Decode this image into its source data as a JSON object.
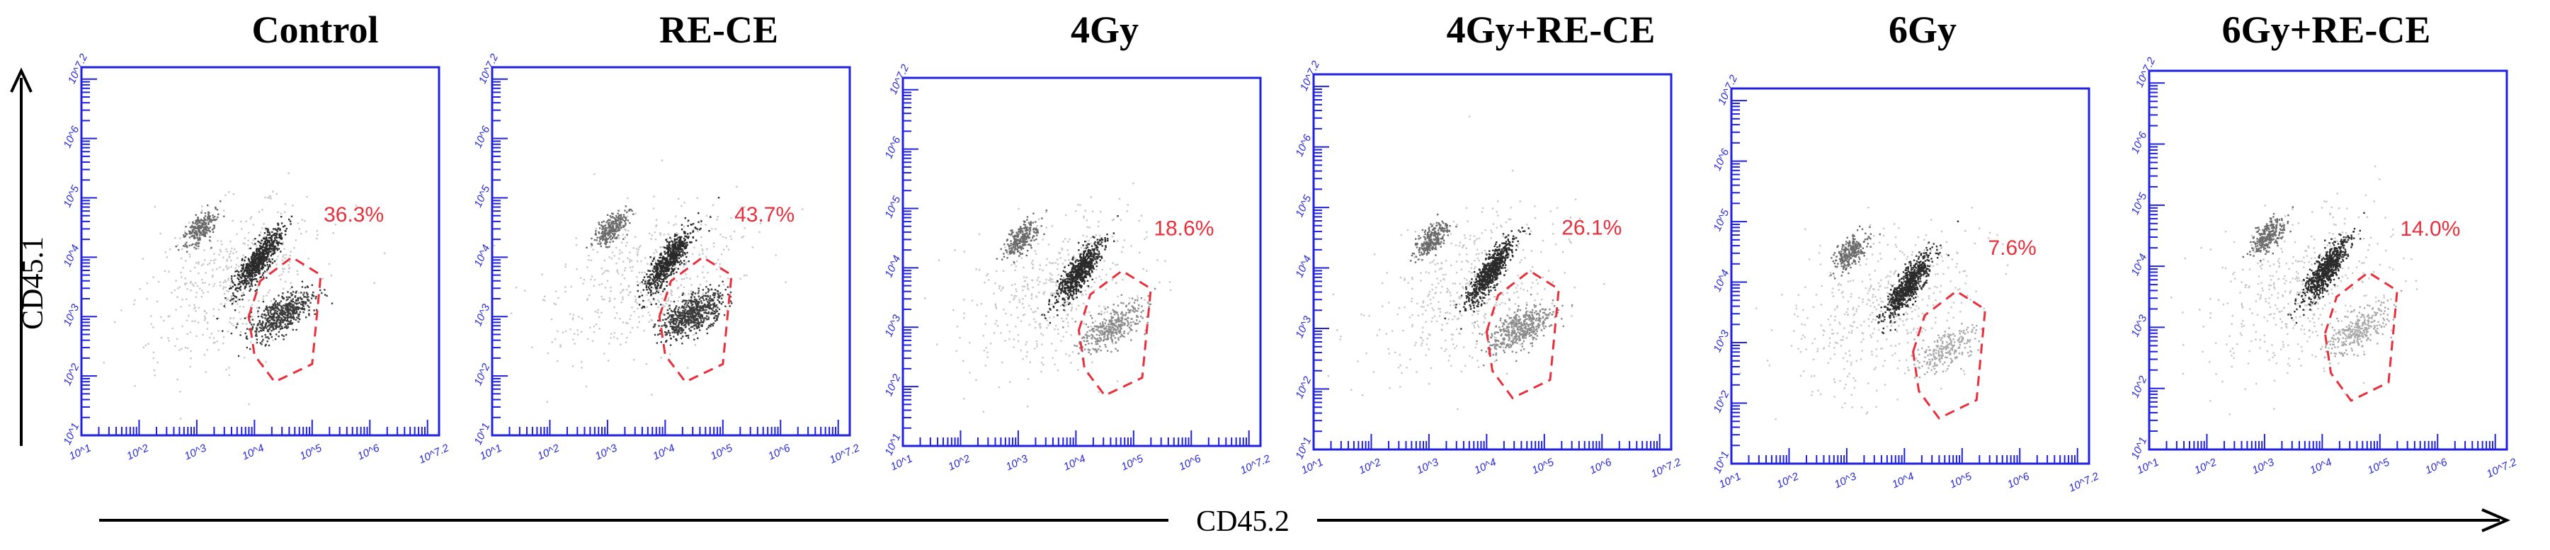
{
  "chart_data": {
    "type": "scatter",
    "xlabel": "CD45.2",
    "ylabel": "CD45.1",
    "xlim": [
      1,
      7.2
    ],
    "ylim": [
      1,
      7.2
    ],
    "x_scale": "log",
    "y_scale": "log",
    "tick_labels": [
      "10^1",
      "10^2",
      "10^3",
      "10^4",
      "10^5",
      "10^6",
      "10^7.2"
    ],
    "panels": [
      {
        "title": "Control",
        "gate_percent": "36.3%",
        "dim": 0.85,
        "donor_pop": [
          4.45,
          3.05
        ]
      },
      {
        "title": "RE-CE",
        "gate_percent": "43.7%",
        "dim": 1.0,
        "donor_pop": [
          4.45,
          3.05
        ]
      },
      {
        "title": "4Gy",
        "gate_percent": "18.6%",
        "dim": 0.55,
        "donor_pop": [
          4.6,
          3.0
        ]
      },
      {
        "title": "4Gy+RE-CE",
        "gate_percent": "26.1%",
        "dim": 0.7,
        "donor_pop": [
          4.55,
          3.0
        ]
      },
      {
        "title": "6Gy",
        "gate_percent": "7.6%",
        "dim": 0.35,
        "donor_pop": [
          4.7,
          2.9
        ]
      },
      {
        "title": "6Gy+RE-CE",
        "gate_percent": "14.0%",
        "dim": 0.45,
        "donor_pop": [
          4.6,
          2.95
        ]
      }
    ]
  }
}
